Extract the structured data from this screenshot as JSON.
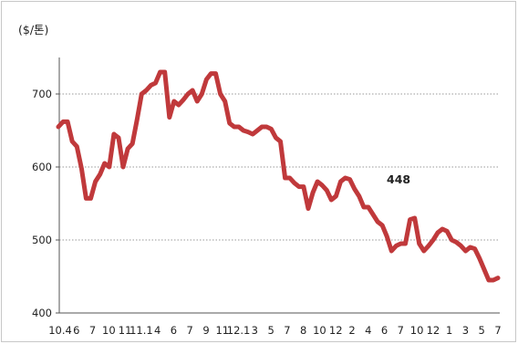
{
  "chart_data": {
    "type": "line",
    "title": "",
    "ylabel": "($/톤)",
    "xlabel": "",
    "ylim": [
      400,
      750
    ],
    "yticks": [
      400,
      500,
      600,
      700
    ],
    "grid": "horizontal-dotted",
    "legend": "none",
    "series_color": "#c0393b",
    "x_tick_labels": [
      "10.4",
      "6",
      "7",
      "10",
      "11",
      "11.1",
      "4",
      "6",
      "7",
      "9",
      "11",
      "12.1",
      "3",
      "5",
      "7",
      "8",
      "10",
      "12",
      "2",
      "4",
      "6",
      "7",
      "10",
      "12",
      "1",
      "3",
      "5",
      "7"
    ],
    "annotation": "448",
    "series": [
      {
        "values": [
          655,
          662,
          662,
          635,
          628,
          598,
          557,
          557,
          580,
          590,
          605,
          600,
          645,
          640,
          600,
          625,
          632,
          665,
          700,
          705,
          712,
          715,
          730,
          730,
          668,
          690,
          685,
          692,
          700,
          705,
          690,
          700,
          720,
          728,
          728,
          700,
          690,
          660,
          655,
          655,
          650,
          648,
          645,
          650,
          655,
          655,
          652,
          640,
          635,
          585,
          585,
          578,
          573,
          573,
          543,
          565,
          580,
          575,
          568,
          555,
          560,
          580,
          585,
          583,
          570,
          560,
          545,
          545,
          535,
          525,
          520,
          505,
          485,
          492,
          495,
          495,
          528,
          530,
          495,
          485,
          492,
          500,
          510,
          515,
          512,
          500,
          497,
          492,
          485,
          490,
          488,
          475,
          460,
          445,
          445,
          448
        ]
      }
    ]
  }
}
